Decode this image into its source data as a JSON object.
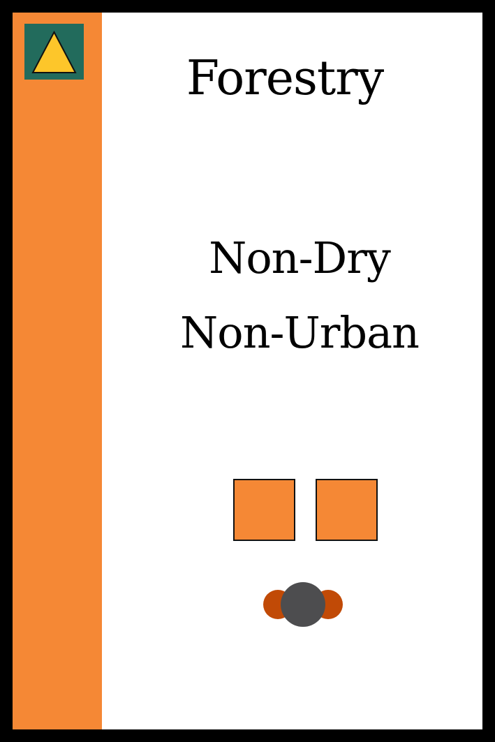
{
  "card": {
    "title": "Forestry",
    "conditions": [
      "Non-Dry",
      "Non-Urban"
    ],
    "type_icon": "triangle-icon",
    "cost_squares": 2,
    "token_icon": "token-cluster-icon",
    "colors": {
      "frame": "#000000",
      "stripe": "#f58835",
      "badge_background": "#226b5c",
      "triangle": "#fdc62a",
      "cost_square": "#f58835",
      "token_outer": "#c14a06",
      "token_center": "#4d4d4f"
    }
  }
}
